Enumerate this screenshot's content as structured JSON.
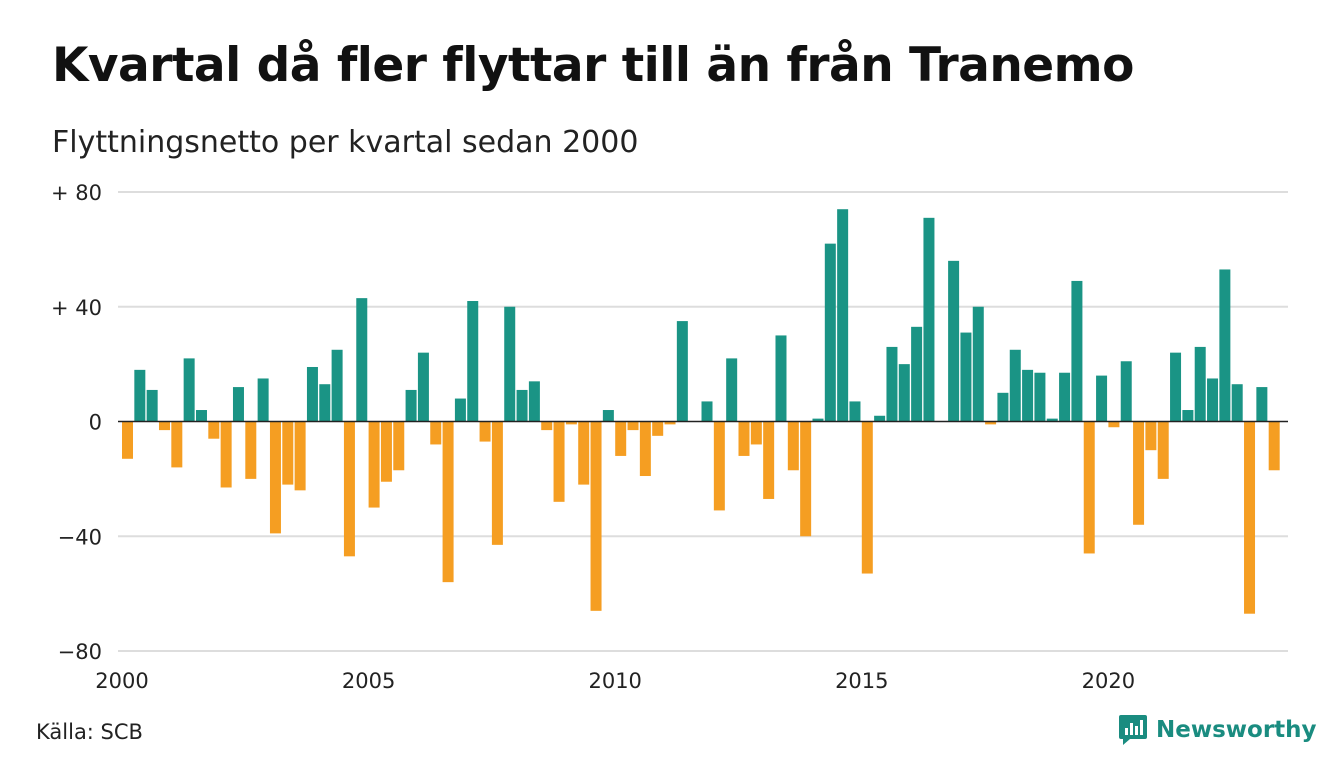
{
  "title": "Kvartal då fler flyttar till än från Tranemo",
  "subtitle": "Flyttningsnetto per kvartal sedan 2000",
  "source": "Källa: SCB",
  "brand": "Newsworthy",
  "colors": {
    "positive": "#1a9485",
    "negative": "#f59e22",
    "grid": "#dddddd",
    "brand": "#1a8c80"
  },
  "chart_data": {
    "type": "bar",
    "title": "Kvartal då fler flyttar till än från Tranemo",
    "subtitle": "Flyttningsnetto per kvartal sedan 2000",
    "xlabel": "",
    "ylabel": "",
    "ylim": [
      -80,
      80
    ],
    "yticks": [
      80,
      40,
      0,
      -40,
      -80
    ],
    "ytick_labels": [
      "+ 80",
      "+ 40",
      "0",
      "−40",
      "−80"
    ],
    "xticks": [
      "2000",
      "2005",
      "2010",
      "2015",
      "2020"
    ],
    "grid": true,
    "start_period": "2000 Q1",
    "categories": [
      "2000 Q1",
      "2000 Q2",
      "2000 Q3",
      "2000 Q4",
      "2001 Q1",
      "2001 Q2",
      "2001 Q3",
      "2001 Q4",
      "2002 Q1",
      "2002 Q2",
      "2002 Q3",
      "2002 Q4",
      "2003 Q1",
      "2003 Q2",
      "2003 Q3",
      "2003 Q4",
      "2004 Q1",
      "2004 Q2",
      "2004 Q3",
      "2004 Q4",
      "2005 Q1",
      "2005 Q2",
      "2005 Q3",
      "2005 Q4",
      "2006 Q1",
      "2006 Q2",
      "2006 Q3",
      "2006 Q4",
      "2007 Q1",
      "2007 Q2",
      "2007 Q3",
      "2007 Q4",
      "2008 Q1",
      "2008 Q2",
      "2008 Q3",
      "2008 Q4",
      "2009 Q1",
      "2009 Q2",
      "2009 Q3",
      "2009 Q4",
      "2010 Q1",
      "2010 Q2",
      "2010 Q3",
      "2010 Q4",
      "2011 Q1",
      "2011 Q2",
      "2011 Q3",
      "2011 Q4",
      "2012 Q1",
      "2012 Q2",
      "2012 Q3",
      "2012 Q4",
      "2013 Q1",
      "2013 Q2",
      "2013 Q3",
      "2013 Q4",
      "2014 Q1",
      "2014 Q2",
      "2014 Q3",
      "2014 Q4",
      "2015 Q1",
      "2015 Q2",
      "2015 Q3",
      "2015 Q4",
      "2016 Q1",
      "2016 Q2",
      "2016 Q3",
      "2016 Q4",
      "2017 Q1",
      "2017 Q2",
      "2017 Q3",
      "2017 Q4",
      "2018 Q1",
      "2018 Q2",
      "2018 Q3",
      "2018 Q4",
      "2019 Q1",
      "2019 Q2",
      "2019 Q3",
      "2019 Q4",
      "2020 Q1",
      "2020 Q2",
      "2020 Q3",
      "2020 Q4",
      "2021 Q1",
      "2021 Q2",
      "2021 Q3",
      "2021 Q4",
      "2022 Q1",
      "2022 Q2",
      "2022 Q3",
      "2022 Q4",
      "2023 Q1",
      "2023 Q2",
      "2023 Q3"
    ],
    "values": [
      -13,
      18,
      11,
      -3,
      -16,
      22,
      4,
      -6,
      -23,
      12,
      -20,
      15,
      -39,
      -22,
      -24,
      19,
      13,
      25,
      -47,
      43,
      -30,
      -21,
      -17,
      11,
      24,
      -8,
      -56,
      8,
      42,
      -7,
      -43,
      40,
      11,
      14,
      -3,
      -28,
      -1,
      -22,
      -66,
      4,
      -12,
      -3,
      -19,
      -5,
      -1,
      35,
      0,
      7,
      -31,
      22,
      -12,
      -8,
      -27,
      30,
      -17,
      -40,
      1,
      62,
      74,
      7,
      -53,
      2,
      26,
      20,
      33,
      71,
      0,
      56,
      31,
      40,
      -1,
      10,
      25,
      18,
      17,
      1,
      17,
      49,
      -46,
      16,
      -2,
      21,
      -36,
      -10,
      -20,
      24,
      4,
      26,
      15,
      53,
      13,
      -67,
      12,
      -17,
      0
    ]
  }
}
